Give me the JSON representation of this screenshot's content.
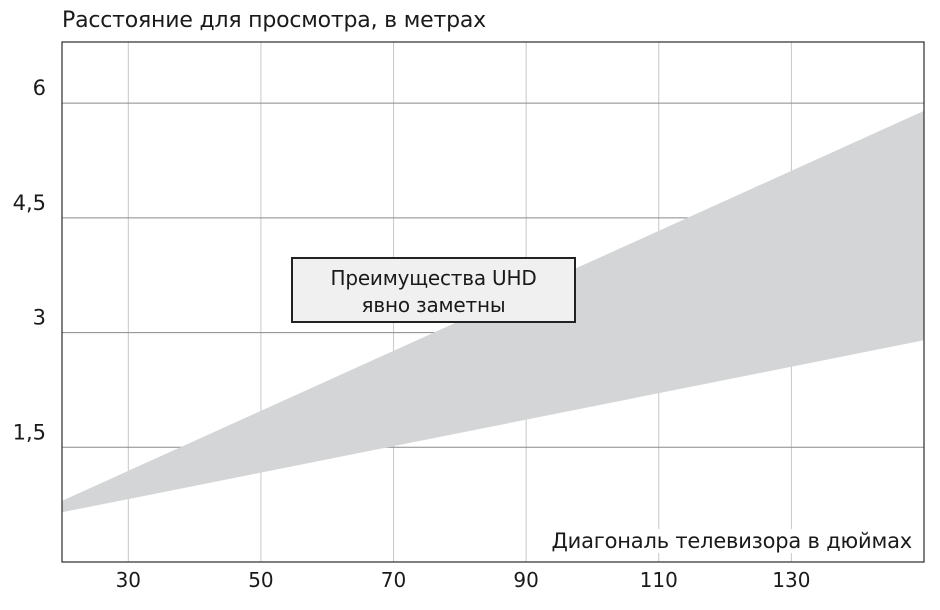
{
  "chart_data": {
    "type": "area",
    "title": "",
    "ylabel": "Расстояние для просмотра, в метрах",
    "xlabel": "Диагональ телевизора в дюймах",
    "xlim": [
      20,
      150
    ],
    "ylim": [
      0,
      6.8
    ],
    "x_ticks": [
      30,
      50,
      70,
      90,
      110,
      130
    ],
    "x_tick_labels": [
      "30",
      "50",
      "70",
      "90",
      "110",
      "130"
    ],
    "y_ticks": [
      1.5,
      3,
      4.5,
      6
    ],
    "y_tick_labels": [
      "1,5",
      "3",
      "4,5",
      "6"
    ],
    "grid": true,
    "band": {
      "x": [
        20,
        150
      ],
      "lower": [
        0.65,
        2.9
      ],
      "upper": [
        0.8,
        5.9
      ],
      "color": "#d4d5d6"
    },
    "annotation": {
      "lines": [
        "Преимущества UHD",
        "явно заметны"
      ]
    }
  }
}
